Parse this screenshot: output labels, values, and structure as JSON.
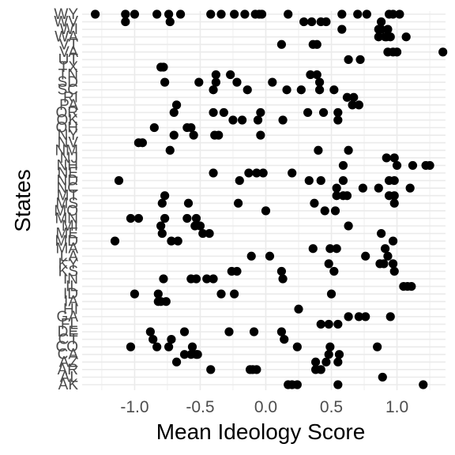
{
  "chart_data": {
    "type": "scatter",
    "xlabel": "Mean Ideology Score",
    "ylabel": "States",
    "xlim": [
      -1.4,
      1.37
    ],
    "x_ticks": [
      -1.0,
      -0.5,
      0.0,
      0.5,
      1.0
    ],
    "x_tick_labels": [
      "-1.0",
      "-0.5",
      "0.0",
      "0.5",
      "1.0"
    ],
    "grid": true,
    "point_color": "#000000",
    "grid_color": "#ebebeb",
    "states": [
      "AK",
      "AL",
      "AR",
      "AZ",
      "CA",
      "CO",
      "CT",
      "DE",
      "FL",
      "GA",
      "HI",
      "IA",
      "ID",
      "IL",
      "IN",
      "KS",
      "KY",
      "LA",
      "MA",
      "MD",
      "ME",
      "MI",
      "MN",
      "MO",
      "MS",
      "MT",
      "NC",
      "ND",
      "NE",
      "NH",
      "NJ",
      "NM",
      "NV",
      "NY",
      "OH",
      "OK",
      "OR",
      "PA",
      "RI",
      "SC",
      "SD",
      "TN",
      "TX",
      "UT",
      "VA",
      "VT",
      "WA",
      "WI",
      "WV",
      "WY"
    ],
    "points": [
      {
        "state": "AK",
        "x": [
          0.17,
          0.2,
          0.24,
          0.55,
          1.2
        ]
      },
      {
        "state": "AL",
        "x": [
          0.89
        ]
      },
      {
        "state": "AR",
        "x": [
          -0.42,
          -0.12,
          -0.1,
          -0.07,
          0.38,
          0.42
        ]
      },
      {
        "state": "AZ",
        "x": [
          -0.68,
          0.38,
          0.46,
          0.55
        ]
      },
      {
        "state": "CA",
        "x": [
          -0.62,
          -0.57,
          -0.53,
          -0.52,
          0.48,
          0.56
        ]
      },
      {
        "state": "CO",
        "x": [
          -1.03,
          -0.83,
          -0.74,
          -0.56,
          0.24,
          0.49,
          0.85
        ]
      },
      {
        "state": "CT",
        "x": [
          -0.86,
          -0.72,
          0.14
        ]
      },
      {
        "state": "DE",
        "x": [
          -0.88,
          -0.62,
          -0.28,
          -0.09,
          0.12
        ]
      },
      {
        "state": "FL",
        "x": [
          0.42,
          0.48,
          0.55
        ]
      },
      {
        "state": "GA",
        "x": [
          0.63,
          0.71,
          0.76,
          0.95
        ]
      },
      {
        "state": "HI",
        "x": [
          0.25
        ]
      },
      {
        "state": "IA",
        "x": [
          -0.82,
          -0.8,
          -0.76
        ]
      },
      {
        "state": "ID",
        "x": [
          -1.0,
          -0.82,
          -0.34,
          -0.24,
          0.5
        ]
      },
      {
        "state": "IL",
        "x": [
          1.05,
          1.08,
          1.11
        ]
      },
      {
        "state": "IN",
        "x": [
          -0.78,
          -0.57,
          -0.53,
          -0.45,
          -0.4,
          0.13
        ]
      },
      {
        "state": "KS",
        "x": [
          -0.26,
          -0.22,
          0.12,
          0.52,
          0.98
        ]
      },
      {
        "state": "KY",
        "x": [
          0.48,
          0.87,
          0.9,
          0.97
        ]
      },
      {
        "state": "LA",
        "x": [
          -0.11,
          0.03,
          0.76,
          0.93
        ]
      },
      {
        "state": "MA",
        "x": [
          0.36,
          0.49,
          0.54,
          0.91
        ]
      },
      {
        "state": "MD",
        "x": [
          -1.15,
          -0.72,
          -0.67,
          0.97
        ]
      },
      {
        "state": "ME",
        "x": [
          -0.79,
          -0.48,
          -0.43,
          0.88
        ]
      },
      {
        "state": "MI",
        "x": [
          -0.8,
          -0.54,
          -0.5,
          0.63
        ]
      },
      {
        "state": "MN",
        "x": [
          -1.03,
          -0.97,
          -0.77,
          -0.6,
          -0.53
        ]
      },
      {
        "state": "MO",
        "x": [
          0.0,
          0.45,
          0.53
        ]
      },
      {
        "state": "MS",
        "x": [
          -0.79,
          -0.59,
          -0.21,
          0.37,
          0.98
        ]
      },
      {
        "state": "MT",
        "x": [
          -0.77,
          0.54,
          0.59,
          0.62,
          0.94,
          0.98
        ]
      },
      {
        "state": "NC",
        "x": [
          0.54,
          0.74,
          0.86,
          1.1
        ]
      },
      {
        "state": "ND",
        "x": [
          -1.12,
          -0.2,
          0.33,
          0.42,
          0.59,
          0.94,
          0.98
        ]
      },
      {
        "state": "NE",
        "x": [
          -0.4,
          -0.13,
          -0.07,
          -0.02,
          0.2
        ]
      },
      {
        "state": "NH",
        "x": [
          0.59,
          1.0,
          1.12,
          1.22,
          1.25
        ]
      },
      {
        "state": "NJ",
        "x": [
          0.92,
          0.98
        ]
      },
      {
        "state": "NM",
        "x": [
          -0.73,
          0.4,
          0.63
        ]
      },
      {
        "state": "NV",
        "x": [
          -0.97,
          -0.94
        ]
      },
      {
        "state": "NY",
        "x": [
          -0.7,
          -0.55,
          -0.39,
          -0.36,
          -0.04
        ]
      },
      {
        "state": "OH",
        "x": [
          -0.85,
          -0.6,
          -0.57
        ]
      },
      {
        "state": "OK",
        "x": [
          -0.25,
          -0.18,
          -0.06,
          0.13,
          0.55
        ]
      },
      {
        "state": "OR",
        "x": [
          -0.7,
          -0.4,
          -0.32,
          -0.04,
          0.32,
          0.44,
          0.55
        ]
      },
      {
        "state": "PA",
        "x": [
          -0.68,
          0.66,
          0.71
        ]
      },
      {
        "state": "RI",
        "x": [
          0.62,
          0.67
        ]
      },
      {
        "state": "SC",
        "x": [
          -0.4,
          -0.14,
          0.16,
          0.27,
          0.41,
          0.52
        ]
      },
      {
        "state": "SD",
        "x": [
          -0.77,
          -0.51,
          -0.38,
          -0.22,
          0.05,
          0.41
        ]
      },
      {
        "state": "TN",
        "x": [
          -0.38,
          -0.27,
          0.34,
          0.39
        ]
      },
      {
        "state": "TX",
        "x": [
          -0.78,
          -0.8
        ]
      },
      {
        "state": "UT",
        "x": [
          0.63,
          0.72
        ]
      },
      {
        "state": "VA",
        "x": [
          0.93,
          0.97,
          1.0,
          1.35
        ]
      },
      {
        "state": "VT",
        "x": [
          0.12,
          0.36,
          0.39
        ]
      },
      {
        "state": "WA",
        "x": [
          0.86,
          0.91,
          0.92,
          0.95,
          1.07
        ]
      },
      {
        "state": "WI",
        "x": [
          0.58,
          0.86,
          0.88,
          0.93
        ]
      },
      {
        "state": "WV",
        "x": [
          -1.07,
          -0.73,
          0.29,
          0.35,
          0.42,
          0.46,
          0.88
        ]
      },
      {
        "state": "WY",
        "x": [
          -1.3,
          -1.07,
          -1.0,
          -0.83,
          -0.74,
          -0.65,
          -0.42,
          0.17,
          0.58,
          0.7,
          0.77,
          -0.34,
          -0.24,
          -0.16,
          -0.08,
          -0.05,
          -0.03,
          0.94,
          0.97,
          1.02
        ]
      }
    ]
  }
}
